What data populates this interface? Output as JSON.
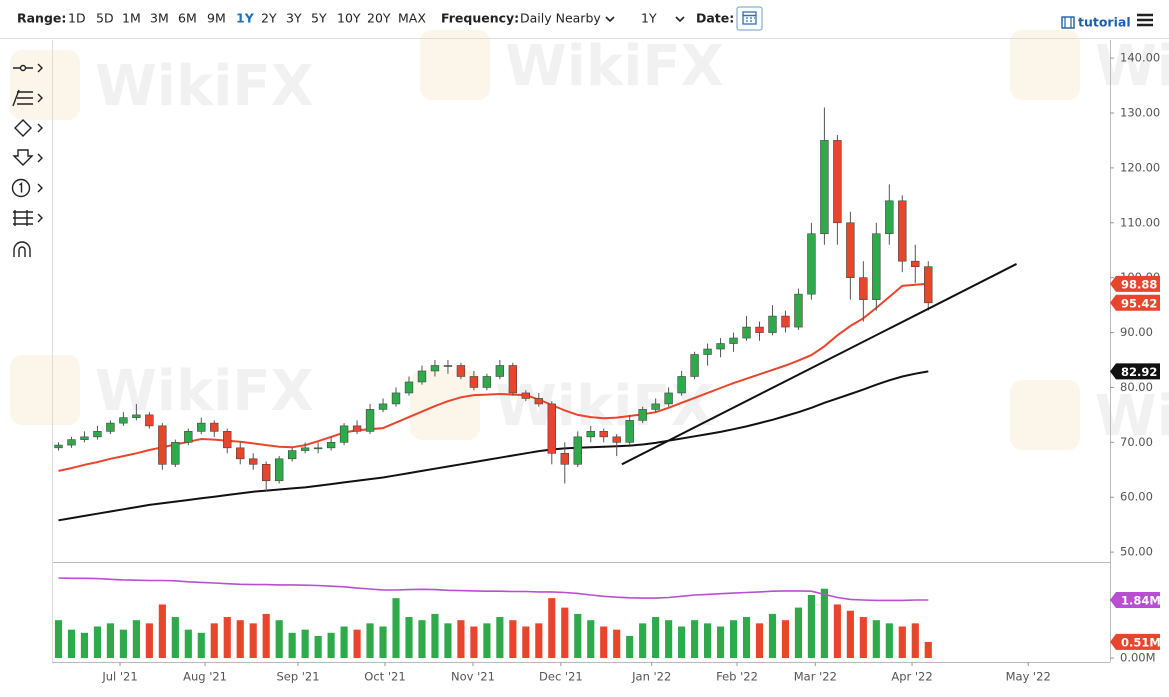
{
  "toolbar": {
    "range_label": "Range:",
    "ranges": [
      "1D",
      "5D",
      "1M",
      "3M",
      "6M",
      "9M",
      "1Y",
      "2Y",
      "3Y",
      "5Y",
      "10Y",
      "20Y",
      "MAX"
    ],
    "active_range": "1Y",
    "frequency_label": "Frequency:",
    "frequency": "Daily Nearby",
    "period": "1Y",
    "date_label": "Date:",
    "tutorial": "tutorial"
  },
  "watermark": "WikiFX",
  "chart_data": {
    "type": "candlestick",
    "up_color": "#2eaa4a",
    "down_color": "#e8452c",
    "xlim": [
      -0.5,
      81
    ],
    "xticks": [
      {
        "value": 4.74,
        "label": "Jul '21"
      },
      {
        "value": 11.29,
        "label": "Aug '21"
      },
      {
        "value": 18.45,
        "label": "Sep '21"
      },
      {
        "value": 25.15,
        "label": "Oct '21"
      },
      {
        "value": 31.93,
        "label": "Nov '21"
      },
      {
        "value": 38.7,
        "label": "Dec '21"
      },
      {
        "value": 45.7,
        "label": "Jan '22"
      },
      {
        "value": 52.27,
        "label": "Feb '22"
      },
      {
        "value": 58.3,
        "label": "Mar '22"
      },
      {
        "value": 65.75,
        "label": "Apr '22"
      },
      {
        "value": 74.7,
        "label": "May '22"
      }
    ],
    "ylim": [
      48.2,
      143.3
    ],
    "yticks": [
      {
        "value": 50,
        "label": "50.00"
      },
      {
        "value": 60,
        "label": "60.00"
      },
      {
        "value": 70,
        "label": "70.00"
      },
      {
        "value": 80,
        "label": "80.00"
      },
      {
        "value": 90,
        "label": "90.00"
      },
      {
        "value": 100,
        "label": "100.00"
      },
      {
        "value": 110,
        "label": "110.00"
      },
      {
        "value": 120,
        "label": "120.00"
      },
      {
        "value": 130,
        "label": "130.00"
      },
      {
        "value": 140,
        "label": "140.00"
      }
    ],
    "open": [
      69,
      69.5,
      70.5,
      71,
      72,
      73.5,
      74.5,
      75,
      73,
      66,
      70,
      72,
      73.5,
      72,
      69,
      67,
      66,
      63,
      67,
      68.5,
      69,
      69,
      70,
      73,
      72,
      76,
      77,
      79,
      81,
      83,
      84,
      84,
      82,
      80,
      82,
      84,
      79,
      78,
      77,
      68,
      66,
      71,
      72,
      71,
      70,
      74,
      76,
      77,
      79,
      82,
      86,
      87,
      88,
      89,
      91,
      90,
      93,
      91,
      97,
      108,
      125,
      110,
      100,
      96,
      108,
      114,
      103,
      102
    ],
    "high": [
      70,
      71,
      72,
      73,
      74,
      75.5,
      77,
      75.5,
      73.5,
      70.5,
      72.5,
      74.5,
      74,
      72.5,
      70,
      68,
      66.5,
      67.5,
      69,
      70,
      70,
      71,
      73.5,
      74,
      77,
      78,
      80,
      82,
      84,
      85,
      85,
      84.5,
      83,
      82.5,
      85,
      84.5,
      79.5,
      79,
      77.5,
      70,
      72,
      73,
      72.5,
      71.5,
      75,
      76.5,
      78,
      80,
      83,
      86.5,
      88,
      89,
      90,
      93,
      92,
      95,
      94,
      98,
      110,
      131,
      126,
      112,
      103,
      110,
      117,
      115,
      106,
      103
    ],
    "low": [
      68.5,
      69,
      70,
      70.5,
      71.5,
      73,
      74,
      72.5,
      65,
      65.5,
      69.5,
      71.5,
      71,
      68,
      66,
      65,
      61,
      62.5,
      66.5,
      68,
      68,
      68.5,
      69.5,
      71.5,
      71.5,
      75.5,
      76.5,
      78.5,
      80.5,
      82,
      82.5,
      81.5,
      79.5,
      79.5,
      81.5,
      78.5,
      77.5,
      76.5,
      66,
      62.5,
      65.5,
      70,
      70,
      67.5,
      69.5,
      73.5,
      75.5,
      76.5,
      78.5,
      81.5,
      84,
      85.5,
      86.5,
      88.5,
      88.5,
      89.5,
      90,
      90.5,
      96,
      106,
      106,
      96,
      92,
      94,
      106,
      101,
      99,
      94
    ],
    "close": [
      69.5,
      70.5,
      71,
      72,
      73.5,
      74.5,
      75,
      73,
      66,
      70,
      72,
      73.5,
      72,
      69,
      67,
      66,
      63,
      67,
      68.5,
      69,
      69,
      70,
      73,
      72,
      76,
      77,
      79,
      81,
      83,
      84,
      84,
      82,
      80,
      82,
      84,
      79,
      78,
      77,
      68,
      66,
      71,
      72,
      71,
      70,
      74,
      76,
      77,
      79,
      82,
      86,
      87,
      88,
      89,
      91,
      90,
      93,
      91,
      97,
      108,
      125,
      110,
      100,
      96,
      108,
      114,
      103,
      102,
      95.42
    ],
    "lines": [
      {
        "color": "#e8452c",
        "values": [
          64.8,
          65.3,
          65.9,
          66.4,
          67,
          67.5,
          68,
          68.6,
          69.1,
          69.6,
          70.1,
          70.6,
          70.5,
          70.3,
          70.1,
          69.8,
          69.5,
          69.2,
          69.1,
          69.5,
          70.2,
          71,
          71.8,
          72.2,
          72.4,
          72.6,
          73.6,
          74.6,
          75.6,
          76.6,
          77.5,
          78.2,
          78.6,
          78.7,
          78.8,
          78.7,
          78.6,
          77.8,
          76.8,
          75.8,
          75,
          74.6,
          74.4,
          74.5,
          74.8,
          75.1,
          75.5,
          76.3,
          77.2,
          78.1,
          79,
          79.9,
          80.8,
          81.6,
          82.4,
          83.2,
          84,
          84.9,
          85.9,
          87.5,
          89.5,
          91.2,
          92.6,
          94.5,
          96.5,
          98.5,
          98.7,
          98.88
        ]
      },
      {
        "color": "#111111",
        "values": [
          55.8,
          56.2,
          56.6,
          57,
          57.4,
          57.8,
          58.2,
          58.6,
          58.9,
          59.2,
          59.5,
          59.8,
          60.1,
          60.4,
          60.7,
          61,
          61.2,
          61.4,
          61.6,
          61.8,
          62.1,
          62.4,
          62.7,
          63,
          63.3,
          63.6,
          64,
          64.4,
          64.8,
          65.2,
          65.6,
          66,
          66.4,
          66.8,
          67.2,
          67.6,
          68,
          68.4,
          68.7,
          68.9,
          69,
          69.1,
          69.2,
          69.3,
          69.4,
          69.6,
          69.9,
          70.3,
          70.7,
          71.1,
          71.5,
          71.9,
          72.4,
          72.9,
          73.5,
          74.1,
          74.8,
          75.5,
          76.3,
          77.2,
          78,
          78.8,
          79.6,
          80.5,
          81.3,
          82,
          82.5,
          82.92
        ]
      }
    ],
    "trendline": {
      "color": "#111111",
      "x": [
        43.4,
        73.8
      ],
      "y": [
        66,
        102.5
      ]
    },
    "tags": [
      {
        "value": 98.88,
        "label": "98.88",
        "color": "#e8452c"
      },
      {
        "value": 95.42,
        "label": "95.42",
        "color": "#e8452c"
      },
      {
        "value": 82.92,
        "label": "82.92",
        "color": "#111111"
      }
    ],
    "volume": [
      1.2,
      0.9,
      0.8,
      1.0,
      1.1,
      0.9,
      1.2,
      1.1,
      1.7,
      1.3,
      0.9,
      0.8,
      1.1,
      1.3,
      1.2,
      1.1,
      1.4,
      1.2,
      0.8,
      0.9,
      0.7,
      0.8,
      1.0,
      0.9,
      1.1,
      1.0,
      1.9,
      1.3,
      1.2,
      1.4,
      1.1,
      1.2,
      1.0,
      1.1,
      1.3,
      1.2,
      1.0,
      1.1,
      1.9,
      1.6,
      1.4,
      1.2,
      1.0,
      0.9,
      0.7,
      1.1,
      1.3,
      1.2,
      1.0,
      1.2,
      1.1,
      1.0,
      1.2,
      1.3,
      1.1,
      1.4,
      1.2,
      1.6,
      2.0,
      2.2,
      1.7,
      1.5,
      1.3,
      1.2,
      1.1,
      1.0,
      1.1,
      0.51
    ],
    "volume_ylim": [
      0,
      3.0
    ],
    "volume_yticks": [
      {
        "value": 0,
        "label": "0.00M"
      }
    ],
    "volume_ma": {
      "color": "#b84fd0",
      "values": [
        2.54,
        2.53,
        2.53,
        2.52,
        2.5,
        2.48,
        2.47,
        2.46,
        2.46,
        2.45,
        2.42,
        2.4,
        2.38,
        2.36,
        2.34,
        2.33,
        2.33,
        2.32,
        2.32,
        2.31,
        2.3,
        2.28,
        2.26,
        2.22,
        2.19,
        2.16,
        2.16,
        2.17,
        2.18,
        2.17,
        2.15,
        2.14,
        2.13,
        2.12,
        2.12,
        2.11,
        2.11,
        2.1,
        2.1,
        2.08,
        2.05,
        2.0,
        1.96,
        1.93,
        1.91,
        1.9,
        1.9,
        1.92,
        1.96,
        2.0,
        2.02,
        2.04,
        2.06,
        2.08,
        2.1,
        2.12,
        2.13,
        2.13,
        2.12,
        2.02,
        1.92,
        1.86,
        1.84,
        1.83,
        1.83,
        1.83,
        1.84,
        1.84
      ]
    },
    "volume_tags": [
      {
        "value": 1.84,
        "label": "1.84M",
        "color": "#b84fd0"
      },
      {
        "value": 0.51,
        "label": "0.51M",
        "color": "#e8452c"
      }
    ]
  }
}
